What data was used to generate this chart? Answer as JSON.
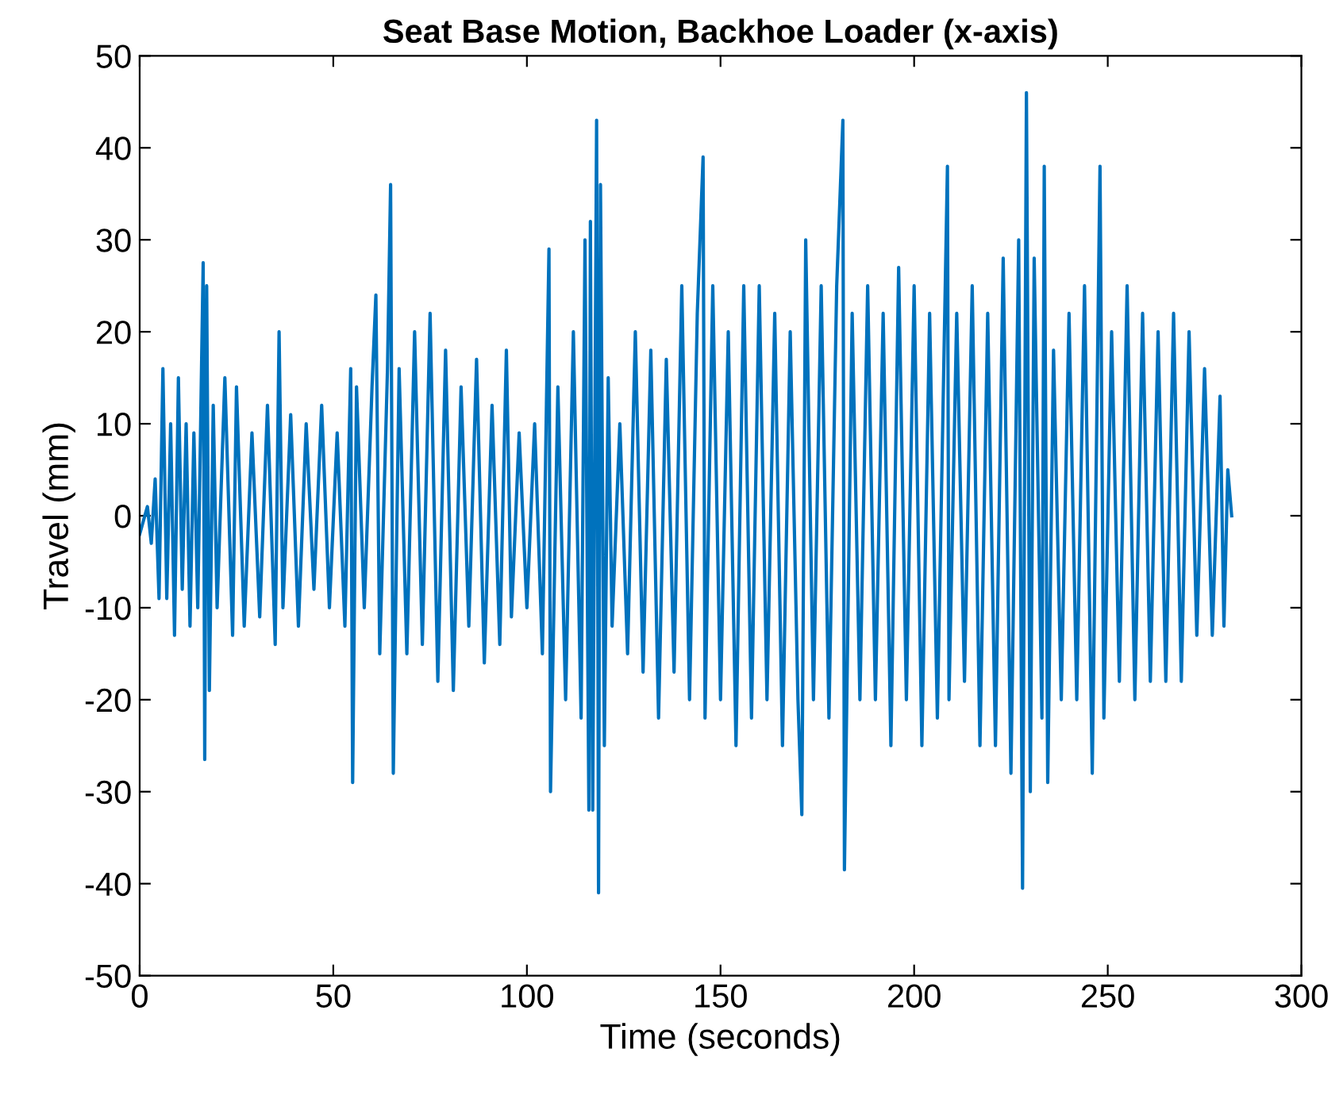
{
  "chart_data": {
    "type": "line",
    "title": "Seat Base Motion, Backhoe Loader (x-axis)",
    "xlabel": "Time (seconds)",
    "ylabel": "Travel (mm)",
    "x": [
      0,
      2,
      3,
      4,
      5,
      6,
      7,
      8,
      9,
      10,
      11,
      12,
      13,
      14,
      15,
      16.4,
      16.8,
      17.3,
      18,
      19,
      20,
      22,
      24,
      25,
      27,
      29,
      31,
      33,
      35,
      36,
      37,
      39,
      41,
      43,
      45,
      47,
      49,
      51,
      53,
      54.5,
      55,
      56,
      58,
      60,
      61,
      62,
      64,
      64.8,
      65.5,
      67,
      69,
      71,
      73,
      75,
      77,
      79,
      81,
      83,
      85,
      87,
      89,
      91,
      93,
      94.7,
      96,
      98,
      100,
      102,
      104,
      105.7,
      106.1,
      108,
      110,
      112,
      114,
      115,
      116,
      116.4,
      117,
      118,
      118.5,
      119,
      120,
      121,
      122,
      124,
      126,
      128,
      130,
      132,
      134,
      136,
      138,
      140,
      142,
      144,
      145.5,
      146,
      148,
      150,
      152,
      154,
      156,
      158,
      160,
      162,
      164,
      166,
      168,
      170,
      171,
      172,
      174,
      176,
      178,
      180,
      181.6,
      182,
      184,
      186,
      188,
      190,
      192,
      194,
      196,
      198,
      200,
      202,
      204,
      206,
      208.6,
      209,
      211,
      213,
      215,
      217,
      219,
      221,
      223,
      225,
      227,
      228,
      229,
      230,
      231,
      233,
      233.6,
      234.5,
      236,
      238,
      240,
      242,
      244,
      246,
      248,
      249,
      251,
      253,
      255,
      257,
      259,
      261,
      263,
      265,
      267,
      269,
      271,
      273,
      275,
      277,
      279,
      280,
      281,
      282
    ],
    "series": [
      {
        "color": "#0072bd",
        "values": [
          -2,
          1,
          -3,
          4,
          -9,
          16,
          -9,
          10,
          -13,
          15,
          -8,
          10,
          -12,
          9,
          -10,
          27.5,
          -26.5,
          25,
          -19,
          12,
          -10,
          15,
          -13,
          14,
          -12,
          9,
          -11,
          12,
          -14,
          20,
          -10,
          11,
          -12,
          10,
          -8,
          12,
          -10,
          9,
          -12,
          16,
          -29,
          14,
          -10,
          14,
          24,
          -15,
          16,
          36,
          -28,
          16,
          -15,
          20,
          -14,
          22,
          -18,
          18,
          -19,
          14,
          -12,
          17,
          -16,
          12,
          -14,
          18,
          -11,
          9,
          -10,
          10,
          -15,
          29,
          -30,
          14,
          -20,
          20,
          -22,
          30,
          -32,
          32,
          -32,
          43,
          -41,
          36,
          -25,
          15,
          -12,
          10,
          -15,
          20,
          -17,
          18,
          -22,
          17,
          -17,
          25,
          -20,
          22,
          39,
          -22,
          25,
          -20,
          20,
          -25,
          25,
          -22,
          25,
          -20,
          22,
          -25,
          20,
          -20,
          -32.5,
          30,
          -20,
          25,
          -22,
          25,
          43,
          -38.5,
          22,
          -20,
          25,
          -20,
          22,
          -25,
          27,
          -20,
          25,
          -25,
          22,
          -22,
          38,
          -20,
          22,
          -18,
          25,
          -25,
          22,
          -25,
          28,
          -28,
          30,
          -40.5,
          46,
          -30,
          28,
          -22,
          38,
          -29,
          18,
          -20,
          22,
          -20,
          25,
          -28,
          38,
          -22,
          20,
          -18,
          25,
          -20,
          22,
          -18,
          20,
          -18,
          22,
          -18,
          20,
          -13,
          16,
          -13,
          13,
          -12,
          5,
          0
        ]
      }
    ],
    "xlim": [
      0,
      300
    ],
    "xticks": [
      0,
      50,
      100,
      150,
      200,
      250,
      300
    ],
    "ylim": [
      -50,
      50
    ],
    "yticks": [
      -50,
      -40,
      -30,
      -20,
      -10,
      0,
      10,
      20,
      30,
      40,
      50
    ],
    "grid": false,
    "legend": false,
    "marker": "none",
    "line_style": "solid"
  }
}
